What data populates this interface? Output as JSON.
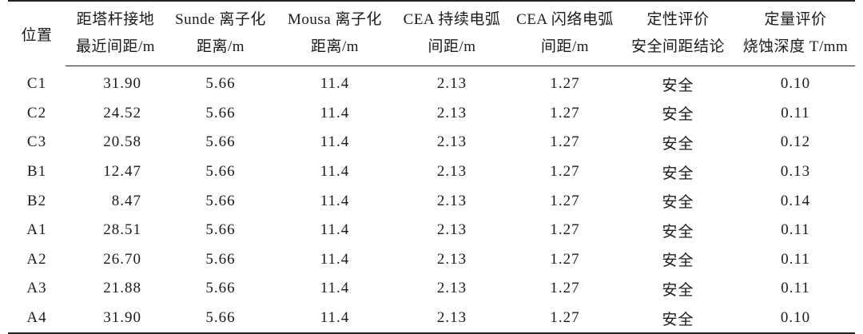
{
  "headers": {
    "position": "位置",
    "distance_line1": "距塔杆接地",
    "distance_line2": "最近间距/m",
    "sunde_line1": "Sunde 离子化",
    "sunde_line2": "距离/m",
    "mousa_line1": "Mousa 离子化",
    "mousa_line2": "距离/m",
    "cea_sustained_line1": "CEA 持续电弧",
    "cea_sustained_line2": "间距/m",
    "cea_flashover_line1": "CEA 闪络电弧",
    "cea_flashover_line2": "间距/m",
    "qualitative_line1": "定性评价",
    "qualitative_line2": "安全间距结论",
    "quantitative_line1": "定量评价",
    "quantitative_line2": "烧蚀深度 T/mm"
  },
  "rows": [
    {
      "position": "C1",
      "distance": "31.90",
      "sunde": "5.66",
      "mousa": "11.4",
      "cea_sustained": "2.13",
      "cea_flashover": "1.27",
      "qualitative": "安全",
      "quantitative": "0.10"
    },
    {
      "position": "C2",
      "distance": "24.52",
      "sunde": "5.66",
      "mousa": "11.4",
      "cea_sustained": "2.13",
      "cea_flashover": "1.27",
      "qualitative": "安全",
      "quantitative": "0.11"
    },
    {
      "position": "C3",
      "distance": "20.58",
      "sunde": "5.66",
      "mousa": "11.4",
      "cea_sustained": "2.13",
      "cea_flashover": "1.27",
      "qualitative": "安全",
      "quantitative": "0.12"
    },
    {
      "position": "B1",
      "distance": "12.47",
      "sunde": "5.66",
      "mousa": "11.4",
      "cea_sustained": "2.13",
      "cea_flashover": "1.27",
      "qualitative": "安全",
      "quantitative": "0.13"
    },
    {
      "position": "B2",
      "distance": "8.47",
      "sunde": "5.66",
      "mousa": "11.4",
      "cea_sustained": "2.13",
      "cea_flashover": "1.27",
      "qualitative": "安全",
      "quantitative": "0.14"
    },
    {
      "position": "A1",
      "distance": "28.51",
      "sunde": "5.66",
      "mousa": "11.4",
      "cea_sustained": "2.13",
      "cea_flashover": "1.27",
      "qualitative": "安全",
      "quantitative": "0.11"
    },
    {
      "position": "A2",
      "distance": "26.70",
      "sunde": "5.66",
      "mousa": "11.4",
      "cea_sustained": "2.13",
      "cea_flashover": "1.27",
      "qualitative": "安全",
      "quantitative": "0.11"
    },
    {
      "position": "A3",
      "distance": "21.88",
      "sunde": "5.66",
      "mousa": "11.4",
      "cea_sustained": "2.13",
      "cea_flashover": "1.27",
      "qualitative": "安全",
      "quantitative": "0.11"
    },
    {
      "position": "A4",
      "distance": "31.90",
      "sunde": "5.66",
      "mousa": "11.4",
      "cea_sustained": "2.13",
      "cea_flashover": "1.27",
      "qualitative": "安全",
      "quantitative": "0.10"
    }
  ]
}
